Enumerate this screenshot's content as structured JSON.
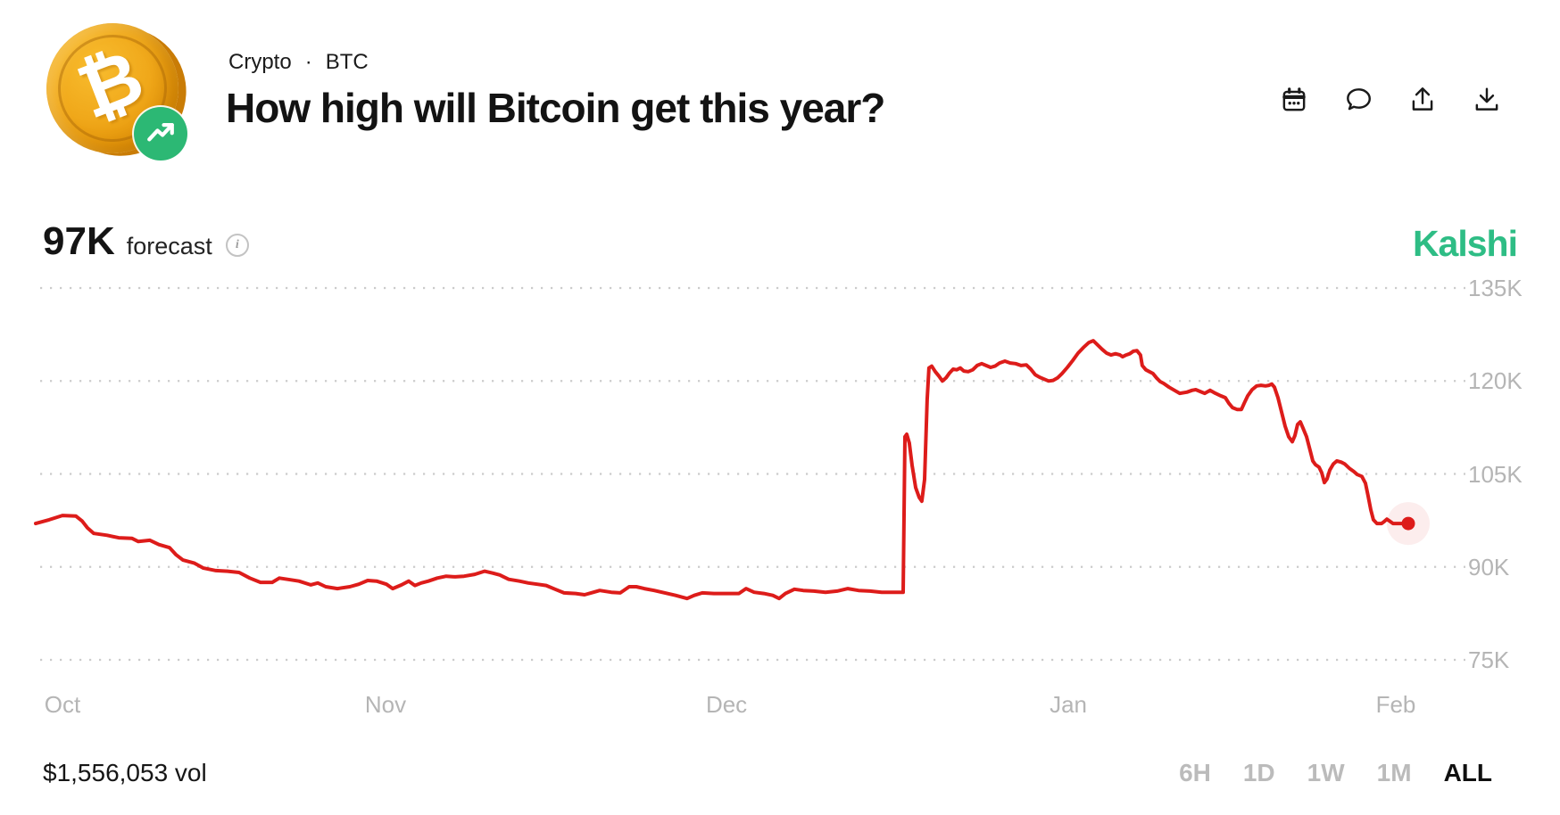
{
  "header": {
    "breadcrumb": {
      "category": "Crypto",
      "separator": "·",
      "ticker": "BTC"
    },
    "title": "How high will Bitcoin get this year?",
    "icons": [
      {
        "name": "calendar"
      },
      {
        "name": "comment"
      },
      {
        "name": "share"
      },
      {
        "name": "download"
      }
    ]
  },
  "forecast": {
    "value": "97K",
    "label": "forecast",
    "info_icon": "i"
  },
  "brand": {
    "wordmark": "Kalshi",
    "color": "#2ebd85"
  },
  "colors": {
    "line": "#dd1c1a",
    "dot_halo": "rgba(221,28,26,0.08)",
    "grid": "#cbcbcb",
    "axis_label": "#b5b5b5",
    "brand_green": "#2ebd85",
    "badge_green": "#2cb874",
    "coin_gold": "#f0a81a"
  },
  "chart_data": {
    "type": "line",
    "title": "How high will Bitcoin get this year?",
    "series_name": "forecast (K USD)",
    "grid": "dotted horizontal",
    "legend": "none",
    "ylim": [
      75,
      135
    ],
    "yticks": [
      {
        "label": "135K",
        "value": 135
      },
      {
        "label": "120K",
        "value": 120
      },
      {
        "label": "105K",
        "value": 105
      },
      {
        "label": "90K",
        "value": 90
      },
      {
        "label": "75K",
        "value": 75
      }
    ],
    "xticks": [
      {
        "label": "Oct",
        "t": 0.0195
      },
      {
        "label": "Nov",
        "t": 0.2549
      },
      {
        "label": "Dec",
        "t": 0.5033
      },
      {
        "label": "Jan",
        "t": 0.7523
      },
      {
        "label": "Feb",
        "t": 0.9909
      }
    ],
    "current": {
      "t": 1,
      "value": 97,
      "label": "97K"
    },
    "points": [
      [
        0,
        97
      ],
      [
        0.0098,
        97.6
      ],
      [
        0.0195,
        98.3
      ],
      [
        0.0293,
        98.2
      ],
      [
        0.0338,
        97.4
      ],
      [
        0.0377,
        96.3
      ],
      [
        0.0423,
        95.4
      ],
      [
        0.052,
        95.1
      ],
      [
        0.0605,
        94.7
      ],
      [
        0.0702,
        94.6
      ],
      [
        0.0748,
        94.1
      ],
      [
        0.0832,
        94.3
      ],
      [
        0.0897,
        93.6
      ],
      [
        0.0975,
        93.1
      ],
      [
        0.1021,
        92
      ],
      [
        0.1073,
        91.1
      ],
      [
        0.1157,
        90.6
      ],
      [
        0.1222,
        89.8
      ],
      [
        0.1313,
        89.4
      ],
      [
        0.1398,
        89.3
      ],
      [
        0.1482,
        89.1
      ],
      [
        0.156,
        88.2
      ],
      [
        0.1638,
        87.5
      ],
      [
        0.1723,
        87.5
      ],
      [
        0.1775,
        88.2
      ],
      [
        0.1834,
        88
      ],
      [
        0.1918,
        87.7
      ],
      [
        0.2003,
        87.1
      ],
      [
        0.2055,
        87.4
      ],
      [
        0.2113,
        86.8
      ],
      [
        0.2198,
        86.5
      ],
      [
        0.2289,
        86.8
      ],
      [
        0.2354,
        87.2
      ],
      [
        0.2419,
        87.8
      ],
      [
        0.2484,
        87.7
      ],
      [
        0.2555,
        87.2
      ],
      [
        0.2601,
        86.5
      ],
      [
        0.2666,
        87.1
      ],
      [
        0.2718,
        87.7
      ],
      [
        0.2763,
        87
      ],
      [
        0.2809,
        87.4
      ],
      [
        0.2861,
        87.7
      ],
      [
        0.2926,
        88.2
      ],
      [
        0.2991,
        88.5
      ],
      [
        0.3056,
        88.4
      ],
      [
        0.3121,
        88.5
      ],
      [
        0.3199,
        88.8
      ],
      [
        0.327,
        89.3
      ],
      [
        0.3329,
        89
      ],
      [
        0.3381,
        88.7
      ],
      [
        0.3446,
        88
      ],
      [
        0.3524,
        87.7
      ],
      [
        0.3589,
        87.4
      ],
      [
        0.3654,
        87.2
      ],
      [
        0.3719,
        87
      ],
      [
        0.3784,
        86.4
      ],
      [
        0.3849,
        85.8
      ],
      [
        0.3934,
        85.7
      ],
      [
        0.3999,
        85.5
      ],
      [
        0.4064,
        85.9
      ],
      [
        0.4109,
        86.2
      ],
      [
        0.4194,
        85.9
      ],
      [
        0.4259,
        85.8
      ],
      [
        0.4324,
        86.8
      ],
      [
        0.4376,
        86.8
      ],
      [
        0.4434,
        86.5
      ],
      [
        0.4506,
        86.2
      ],
      [
        0.4584,
        85.8
      ],
      [
        0.4662,
        85.4
      ],
      [
        0.4746,
        84.9
      ],
      [
        0.4798,
        85.4
      ],
      [
        0.4857,
        85.8
      ],
      [
        0.4941,
        85.7
      ],
      [
        0.5039,
        85.7
      ],
      [
        0.5123,
        85.7
      ],
      [
        0.5175,
        86.5
      ],
      [
        0.5234,
        85.9
      ],
      [
        0.5305,
        85.7
      ],
      [
        0.537,
        85.4
      ],
      [
        0.5416,
        84.9
      ],
      [
        0.5462,
        85.7
      ],
      [
        0.5527,
        86.4
      ],
      [
        0.5592,
        86.2
      ],
      [
        0.567,
        86.1
      ],
      [
        0.5754,
        85.9
      ],
      [
        0.5839,
        86.1
      ],
      [
        0.5917,
        86.5
      ],
      [
        0.5995,
        86.2
      ],
      [
        0.6079,
        86.1
      ],
      [
        0.6164,
        85.9
      ],
      [
        0.6242,
        85.9
      ],
      [
        0.6294,
        85.9
      ],
      [
        0.632,
        85.9
      ],
      [
        0.6333,
        111
      ],
      [
        0.6346,
        111.4
      ],
      [
        0.6365,
        110
      ],
      [
        0.6385,
        106.4
      ],
      [
        0.6411,
        102.8
      ],
      [
        0.6437,
        101.2
      ],
      [
        0.6456,
        100.6
      ],
      [
        0.6476,
        104.1
      ],
      [
        0.6495,
        117
      ],
      [
        0.6508,
        122.1
      ],
      [
        0.6528,
        122.4
      ],
      [
        0.6554,
        121.5
      ],
      [
        0.658,
        120.8
      ],
      [
        0.6606,
        120
      ],
      [
        0.6632,
        120.5
      ],
      [
        0.6658,
        121.3
      ],
      [
        0.6684,
        121.9
      ],
      [
        0.671,
        121.8
      ],
      [
        0.6736,
        122.1
      ],
      [
        0.6762,
        121.6
      ],
      [
        0.6794,
        121.5
      ],
      [
        0.6827,
        121.8
      ],
      [
        0.6859,
        122.5
      ],
      [
        0.6892,
        122.8
      ],
      [
        0.6924,
        122.5
      ],
      [
        0.6957,
        122.2
      ],
      [
        0.6989,
        122.4
      ],
      [
        0.7022,
        122.9
      ],
      [
        0.7061,
        123.2
      ],
      [
        0.71,
        122.9
      ],
      [
        0.7139,
        122.8
      ],
      [
        0.7178,
        122.5
      ],
      [
        0.7217,
        122.6
      ],
      [
        0.725,
        121.9
      ],
      [
        0.7282,
        121
      ],
      [
        0.7315,
        120.6
      ],
      [
        0.7347,
        120.3
      ],
      [
        0.738,
        120
      ],
      [
        0.7412,
        120.1
      ],
      [
        0.7445,
        120.5
      ],
      [
        0.7477,
        121.2
      ],
      [
        0.7516,
        122.2
      ],
      [
        0.7555,
        123.3
      ],
      [
        0.7594,
        124.5
      ],
      [
        0.7633,
        125.4
      ],
      [
        0.7672,
        126.2
      ],
      [
        0.7705,
        126.5
      ],
      [
        0.7737,
        125.8
      ],
      [
        0.777,
        125.1
      ],
      [
        0.7802,
        124.5
      ],
      [
        0.7835,
        124.2
      ],
      [
        0.7867,
        124.4
      ],
      [
        0.79,
        124.2
      ],
      [
        0.7919,
        123.9
      ],
      [
        0.7945,
        124.2
      ],
      [
        0.7971,
        124.4
      ],
      [
        0.7997,
        124.8
      ],
      [
        0.8023,
        124.9
      ],
      [
        0.8049,
        124.2
      ],
      [
        0.8062,
        122.5
      ],
      [
        0.8088,
        121.8
      ],
      [
        0.8114,
        121.5
      ],
      [
        0.814,
        121.2
      ],
      [
        0.8166,
        120.5
      ],
      [
        0.8192,
        119.9
      ],
      [
        0.8218,
        119.6
      ],
      [
        0.8257,
        119
      ],
      [
        0.8296,
        118.5
      ],
      [
        0.8335,
        118
      ],
      [
        0.8387,
        118.2
      ],
      [
        0.8426,
        118.5
      ],
      [
        0.8452,
        118.6
      ],
      [
        0.8485,
        118.3
      ],
      [
        0.8517,
        118
      ],
      [
        0.8556,
        118.5
      ],
      [
        0.8595,
        118
      ],
      [
        0.8634,
        117.6
      ],
      [
        0.8667,
        117.3
      ],
      [
        0.8693,
        116.4
      ],
      [
        0.8719,
        115.7
      ],
      [
        0.8752,
        115.4
      ],
      [
        0.8784,
        115.4
      ],
      [
        0.8804,
        116.4
      ],
      [
        0.883,
        117.6
      ],
      [
        0.8862,
        118.6
      ],
      [
        0.8895,
        119.2
      ],
      [
        0.8927,
        119.3
      ],
      [
        0.896,
        119.2
      ],
      [
        0.8986,
        119.3
      ],
      [
        0.9005,
        119.5
      ],
      [
        0.9025,
        119
      ],
      [
        0.9051,
        117.3
      ],
      [
        0.9077,
        115
      ],
      [
        0.9103,
        112.7
      ],
      [
        0.9129,
        111
      ],
      [
        0.9155,
        110.2
      ],
      [
        0.9174,
        111.2
      ],
      [
        0.9194,
        113
      ],
      [
        0.9213,
        113.4
      ],
      [
        0.9233,
        112.4
      ],
      [
        0.9259,
        111
      ],
      [
        0.9285,
        108.8
      ],
      [
        0.9304,
        107.1
      ],
      [
        0.9324,
        106.5
      ],
      [
        0.935,
        106.1
      ],
      [
        0.9369,
        105.2
      ],
      [
        0.9389,
        103.6
      ],
      [
        0.9408,
        104.2
      ],
      [
        0.9428,
        105.6
      ],
      [
        0.9454,
        106.6
      ],
      [
        0.948,
        107.1
      ],
      [
        0.9512,
        106.9
      ],
      [
        0.9538,
        106.6
      ],
      [
        0.9571,
        105.9
      ],
      [
        0.9603,
        105.4
      ],
      [
        0.9629,
        104.9
      ],
      [
        0.9662,
        104.6
      ],
      [
        0.9688,
        103.5
      ],
      [
        0.9707,
        101.5
      ],
      [
        0.9727,
        99.2
      ],
      [
        0.9746,
        97.6
      ],
      [
        0.9772,
        97
      ],
      [
        0.9805,
        97
      ],
      [
        0.9824,
        97.3
      ],
      [
        0.9844,
        97.7
      ],
      [
        0.9863,
        97.4
      ],
      [
        0.9889,
        97
      ],
      [
        0.9922,
        97
      ],
      [
        0.9961,
        97
      ],
      [
        1,
        97
      ]
    ]
  },
  "footer": {
    "volume": "$1,556,053 vol",
    "ranges": [
      {
        "label": "6H",
        "selected": false
      },
      {
        "label": "1D",
        "selected": false
      },
      {
        "label": "1W",
        "selected": false
      },
      {
        "label": "1M",
        "selected": false
      },
      {
        "label": "ALL",
        "selected": true
      }
    ]
  }
}
